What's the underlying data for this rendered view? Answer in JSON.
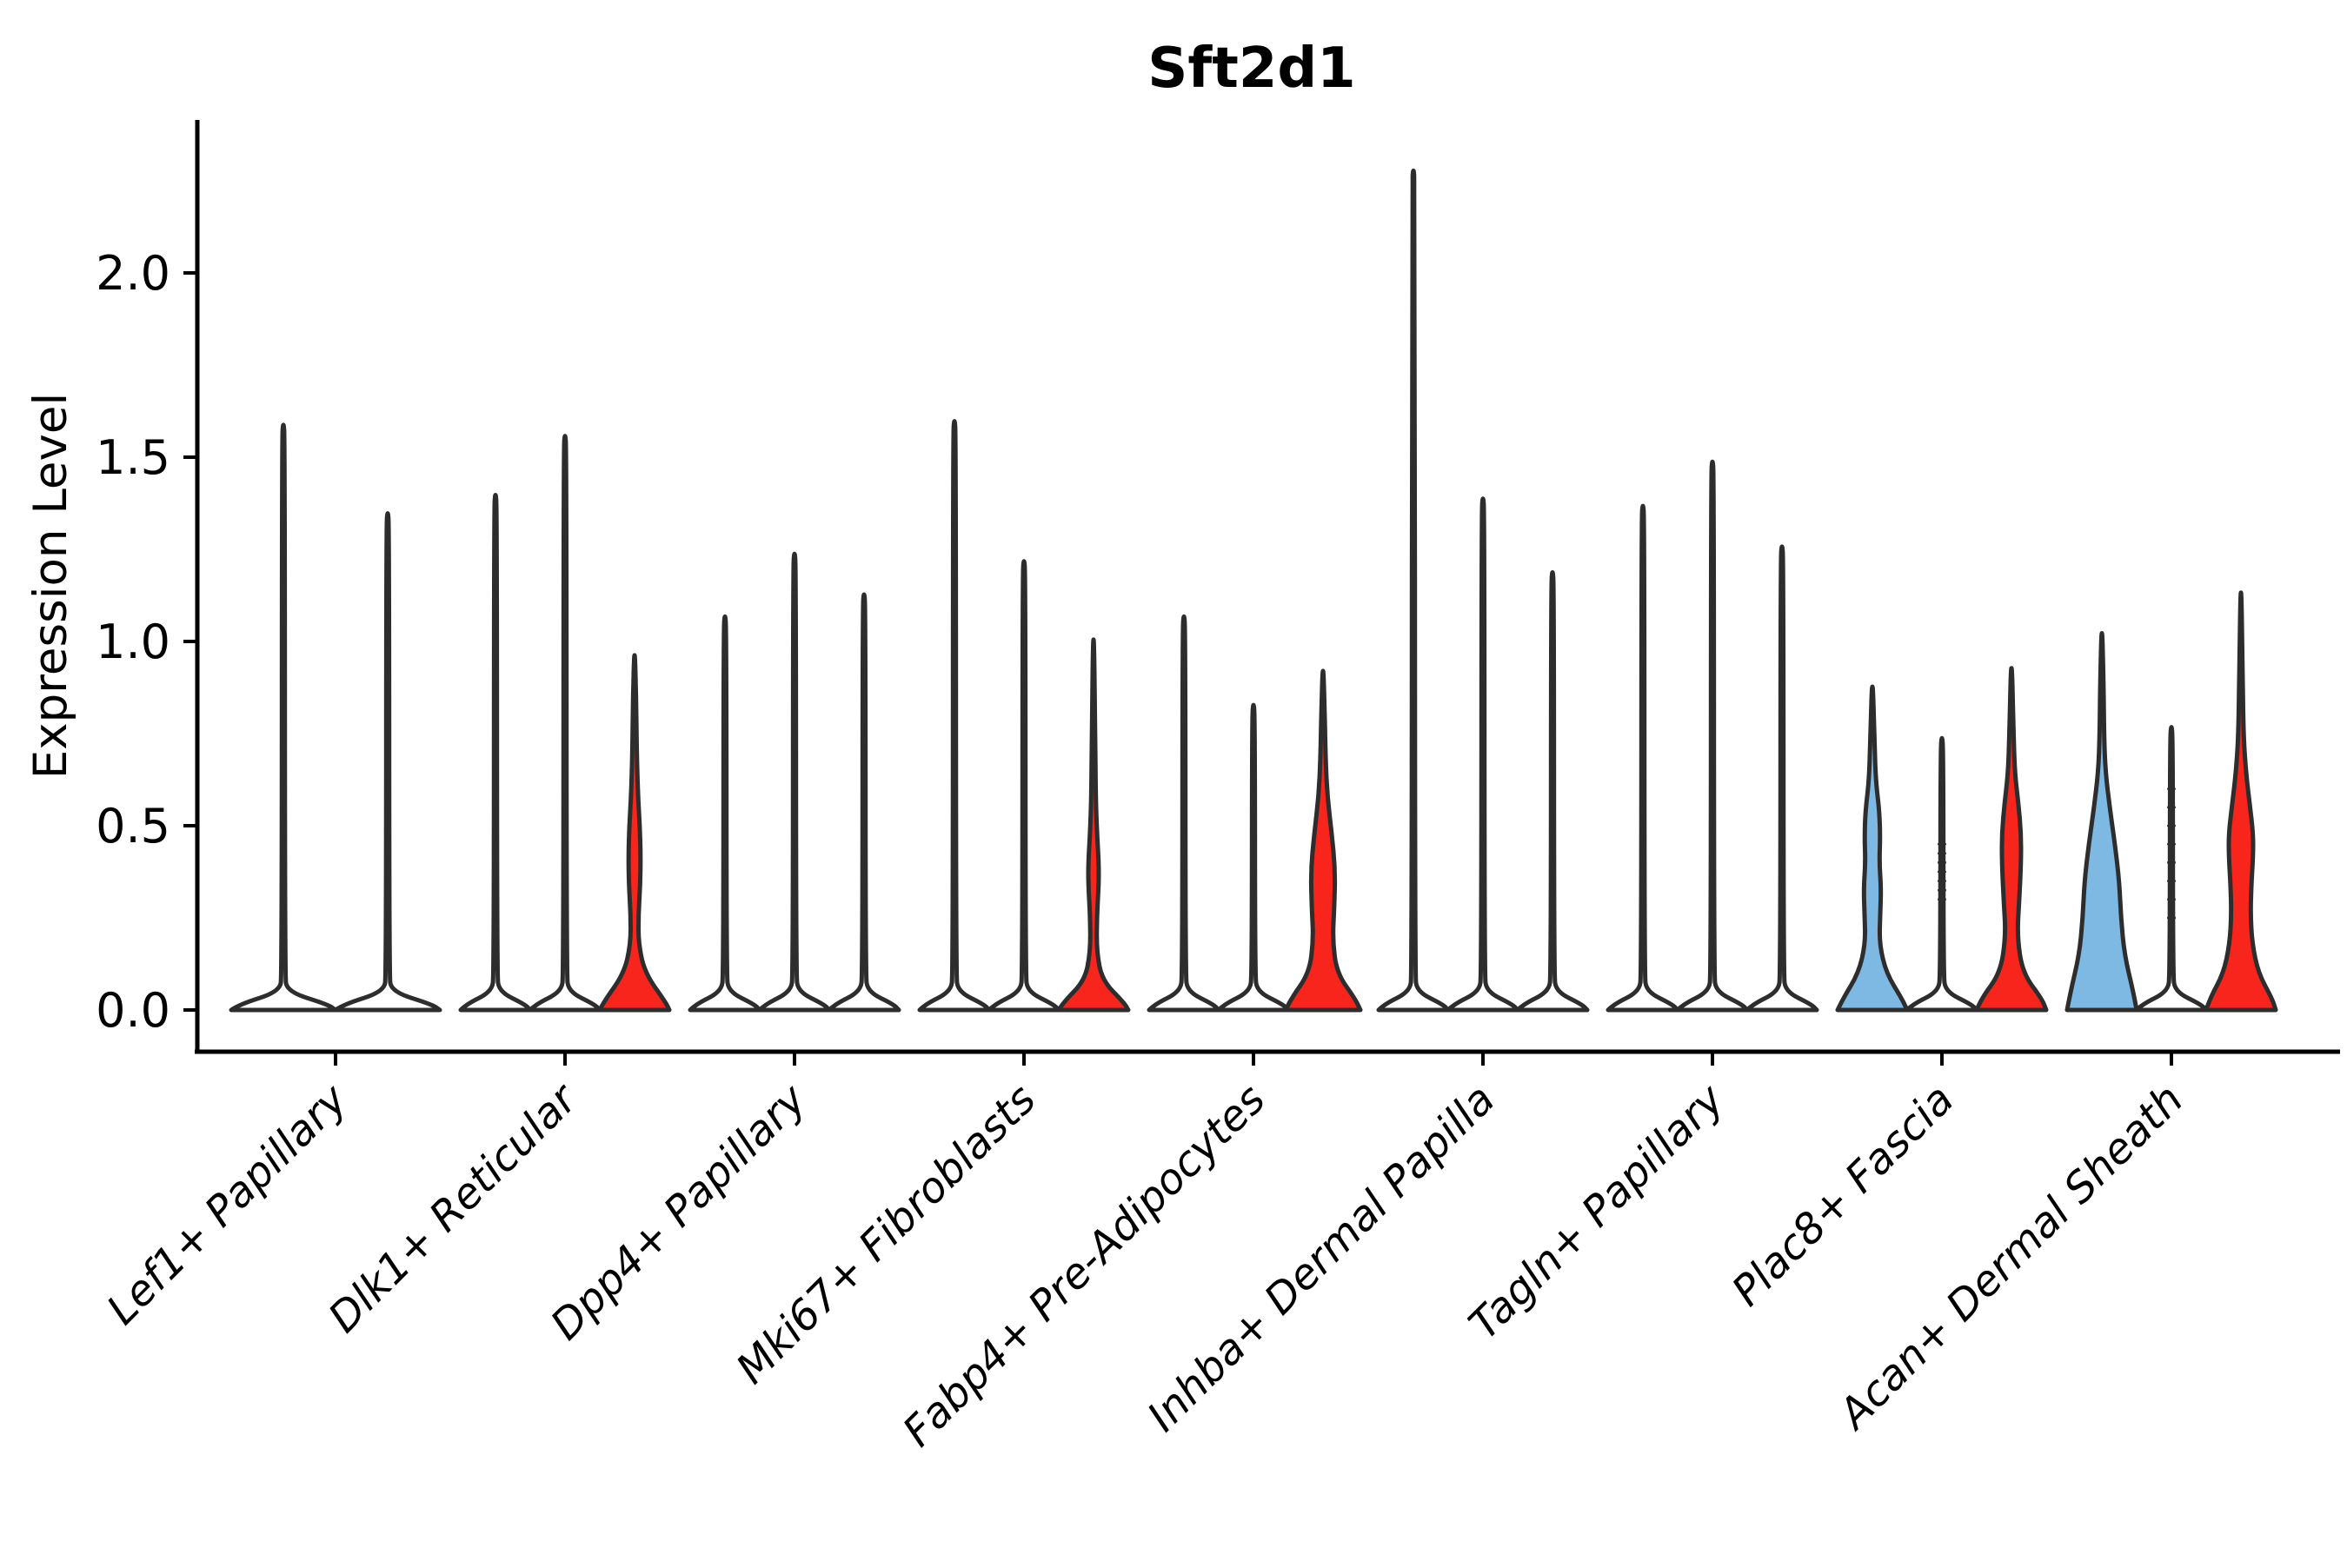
{
  "title": "Sft2d1",
  "y_axis": {
    "label": "Expression Level",
    "tick_labels": [
      "0.0",
      "0.5",
      "1.0",
      "1.5",
      "2.0"
    ],
    "tick_values": [
      0.0,
      0.5,
      1.0,
      1.5,
      2.0
    ]
  },
  "colors": {
    "red_fill": "#f8251c",
    "blue_fill": "#7eb9e3",
    "violin_outline": "#2d2d2d",
    "axis": "#000000",
    "background": "#ffffff"
  },
  "chart_data": {
    "type": "violin",
    "title": "Sft2d1",
    "xlabel": "",
    "ylabel": "Expression Level",
    "ylim": [
      -0.12,
      2.42
    ],
    "grid": false,
    "legend": "none",
    "categories": [
      "Lef1+ Papillary",
      "Dlk1+ Reticular",
      "Dpp4+ Papillary",
      "Mki67+ Fibroblasts",
      "Fabp4+ Pre-Adipocytes",
      "Inhba+ Dermal Papilla",
      "Tagln+ Papillary",
      "Plac8+ Fascia",
      "Acan+ Dermal Sheath"
    ],
    "description": "Violin plot of Sft2d1 expression per fibroblast cluster; most distributions collapse to a wide base at 0 with a thin spike to the max expressing cell; a few violins show visible density (blue or red fill).",
    "groups": [
      {
        "category": "Lef1+ Papillary",
        "violins": [
          {
            "offset": -60,
            "width": 120,
            "max": 1.6,
            "fill": "none",
            "shape": "spike"
          },
          {
            "offset": 60,
            "width": 120,
            "max": 1.36,
            "fill": "none",
            "shape": "spike"
          }
        ]
      },
      {
        "category": "Dlk1+ Reticular",
        "violins": [
          {
            "offset": -80,
            "width": 80,
            "max": 1.41,
            "fill": "none",
            "shape": "spike"
          },
          {
            "offset": 0,
            "width": 80,
            "max": 1.57,
            "fill": "none",
            "shape": "spike"
          },
          {
            "offset": 80,
            "width": 80,
            "max": 1.0,
            "fill": "red",
            "shape": "density",
            "profile": [
              [
                0,
                40
              ],
              [
                0.02,
                36
              ],
              [
                0.1,
                12
              ],
              [
                0.18,
                4.5
              ],
              [
                0.26,
                4.5
              ],
              [
                0.34,
                6.5
              ],
              [
                0.42,
                7
              ],
              [
                0.5,
                6
              ],
              [
                0.58,
                4
              ],
              [
                0.7,
                2.5
              ],
              [
                0.85,
                1.8
              ]
            ]
          }
        ]
      },
      {
        "category": "Dpp4+ Papillary",
        "violins": [
          {
            "offset": -80,
            "width": 80,
            "max": 1.08,
            "fill": "none",
            "shape": "spike"
          },
          {
            "offset": 0,
            "width": 80,
            "max": 1.25,
            "fill": "none",
            "shape": "spike"
          },
          {
            "offset": 80,
            "width": 80,
            "max": 1.14,
            "fill": "none",
            "shape": "spike"
          }
        ]
      },
      {
        "category": "Mki67+ Fibroblasts",
        "violins": [
          {
            "offset": -80,
            "width": 80,
            "max": 1.61,
            "fill": "none",
            "shape": "spike"
          },
          {
            "offset": 0,
            "width": 80,
            "max": 1.23,
            "fill": "none",
            "shape": "spike"
          },
          {
            "offset": 80,
            "width": 80,
            "max": 1.09,
            "fill": "red",
            "shape": "density",
            "profile": [
              [
                0,
                40
              ],
              [
                0.02,
                35
              ],
              [
                0.08,
                10
              ],
              [
                0.16,
                3.5
              ],
              [
                0.26,
                4
              ],
              [
                0.34,
                6
              ],
              [
                0.4,
                6
              ],
              [
                0.48,
                4
              ],
              [
                0.58,
                2.5
              ],
              [
                0.75,
                2
              ]
            ]
          }
        ]
      },
      {
        "category": "Fabp4+ Pre-Adipocytes",
        "violins": [
          {
            "offset": -80,
            "width": 80,
            "max": 1.08,
            "fill": "none",
            "shape": "spike"
          },
          {
            "offset": 0,
            "width": 80,
            "max": 0.84,
            "fill": "none",
            "shape": "spike"
          },
          {
            "offset": 80,
            "width": 80,
            "max": 0.96,
            "fill": "red",
            "shape": "density",
            "profile": [
              [
                0,
                43
              ],
              [
                0.03,
                37
              ],
              [
                0.1,
                16
              ],
              [
                0.19,
                11
              ],
              [
                0.28,
                13
              ],
              [
                0.38,
                14
              ],
              [
                0.48,
                10
              ],
              [
                0.58,
                5
              ],
              [
                0.68,
                3
              ],
              [
                0.8,
                2
              ]
            ]
          }
        ]
      },
      {
        "category": "Inhba+ Dermal Papilla",
        "violins": [
          {
            "offset": -80,
            "width": 80,
            "max": 2.29,
            "fill": "none",
            "shape": "spike"
          },
          {
            "offset": 0,
            "width": 80,
            "max": 1.4,
            "fill": "none",
            "shape": "spike"
          },
          {
            "offset": 80,
            "width": 80,
            "max": 1.2,
            "fill": "none",
            "shape": "spike"
          }
        ]
      },
      {
        "category": "Tagln+ Papillary",
        "violins": [
          {
            "offset": -80,
            "width": 80,
            "max": 1.38,
            "fill": "none",
            "shape": "spike"
          },
          {
            "offset": 0,
            "width": 80,
            "max": 1.5,
            "fill": "none",
            "shape": "spike"
          },
          {
            "offset": 80,
            "width": 80,
            "max": 1.27,
            "fill": "none",
            "shape": "spike"
          }
        ]
      },
      {
        "category": "Plac8+ Fascia",
        "violins": [
          {
            "offset": -80,
            "width": 80,
            "max": 0.93,
            "fill": "blue",
            "shape": "density",
            "profile": [
              [
                0,
                40
              ],
              [
                0.03,
                34
              ],
              [
                0.1,
                16
              ],
              [
                0.18,
                8
              ],
              [
                0.26,
                9
              ],
              [
                0.33,
                10
              ],
              [
                0.4,
                8
              ],
              [
                0.47,
                9
              ],
              [
                0.54,
                8
              ],
              [
                0.62,
                4
              ],
              [
                0.72,
                2.5
              ]
            ]
          },
          {
            "offset": 0,
            "width": 80,
            "max": 0.75,
            "fill": "none",
            "shape": "spike",
            "points": [
              0.3,
              0.325,
              0.35,
              0.375,
              0.4,
              0.425,
              0.45
            ]
          },
          {
            "offset": 80,
            "width": 80,
            "max": 0.99,
            "fill": "red",
            "shape": "density",
            "profile": [
              [
                0,
                40
              ],
              [
                0.03,
                35
              ],
              [
                0.1,
                13
              ],
              [
                0.2,
                6.5
              ],
              [
                0.3,
                9
              ],
              [
                0.4,
                11
              ],
              [
                0.48,
                11
              ],
              [
                0.56,
                8
              ],
              [
                0.64,
                4
              ],
              [
                0.74,
                2.5
              ]
            ]
          }
        ]
      },
      {
        "category": "Acan+ Dermal Sheath",
        "violins": [
          {
            "offset": -80,
            "width": 80,
            "max": 1.07,
            "fill": "blue",
            "shape": "density",
            "profile": [
              [
                0,
                40
              ],
              [
                0.05,
                36
              ],
              [
                0.15,
                26
              ],
              [
                0.25,
                22
              ],
              [
                0.35,
                20
              ],
              [
                0.45,
                15
              ],
              [
                0.55,
                9
              ],
              [
                0.65,
                4
              ],
              [
                0.75,
                2.5
              ],
              [
                0.88,
                2
              ]
            ]
          },
          {
            "offset": 0,
            "width": 80,
            "max": 0.78,
            "fill": "none",
            "shape": "spike",
            "points": [
              0.25,
              0.3,
              0.35,
              0.4,
              0.45,
              0.5,
              0.55,
              0.6
            ]
          },
          {
            "offset": 80,
            "width": 80,
            "max": 1.21,
            "fill": "red",
            "shape": "density",
            "profile": [
              [
                0,
                40
              ],
              [
                0.03,
                36
              ],
              [
                0.1,
                20
              ],
              [
                0.18,
                13
              ],
              [
                0.26,
                11
              ],
              [
                0.34,
                12
              ],
              [
                0.42,
                14
              ],
              [
                0.48,
                14
              ],
              [
                0.56,
                10
              ],
              [
                0.64,
                6
              ],
              [
                0.74,
                3
              ],
              [
                0.9,
                2
              ]
            ]
          }
        ]
      }
    ]
  }
}
